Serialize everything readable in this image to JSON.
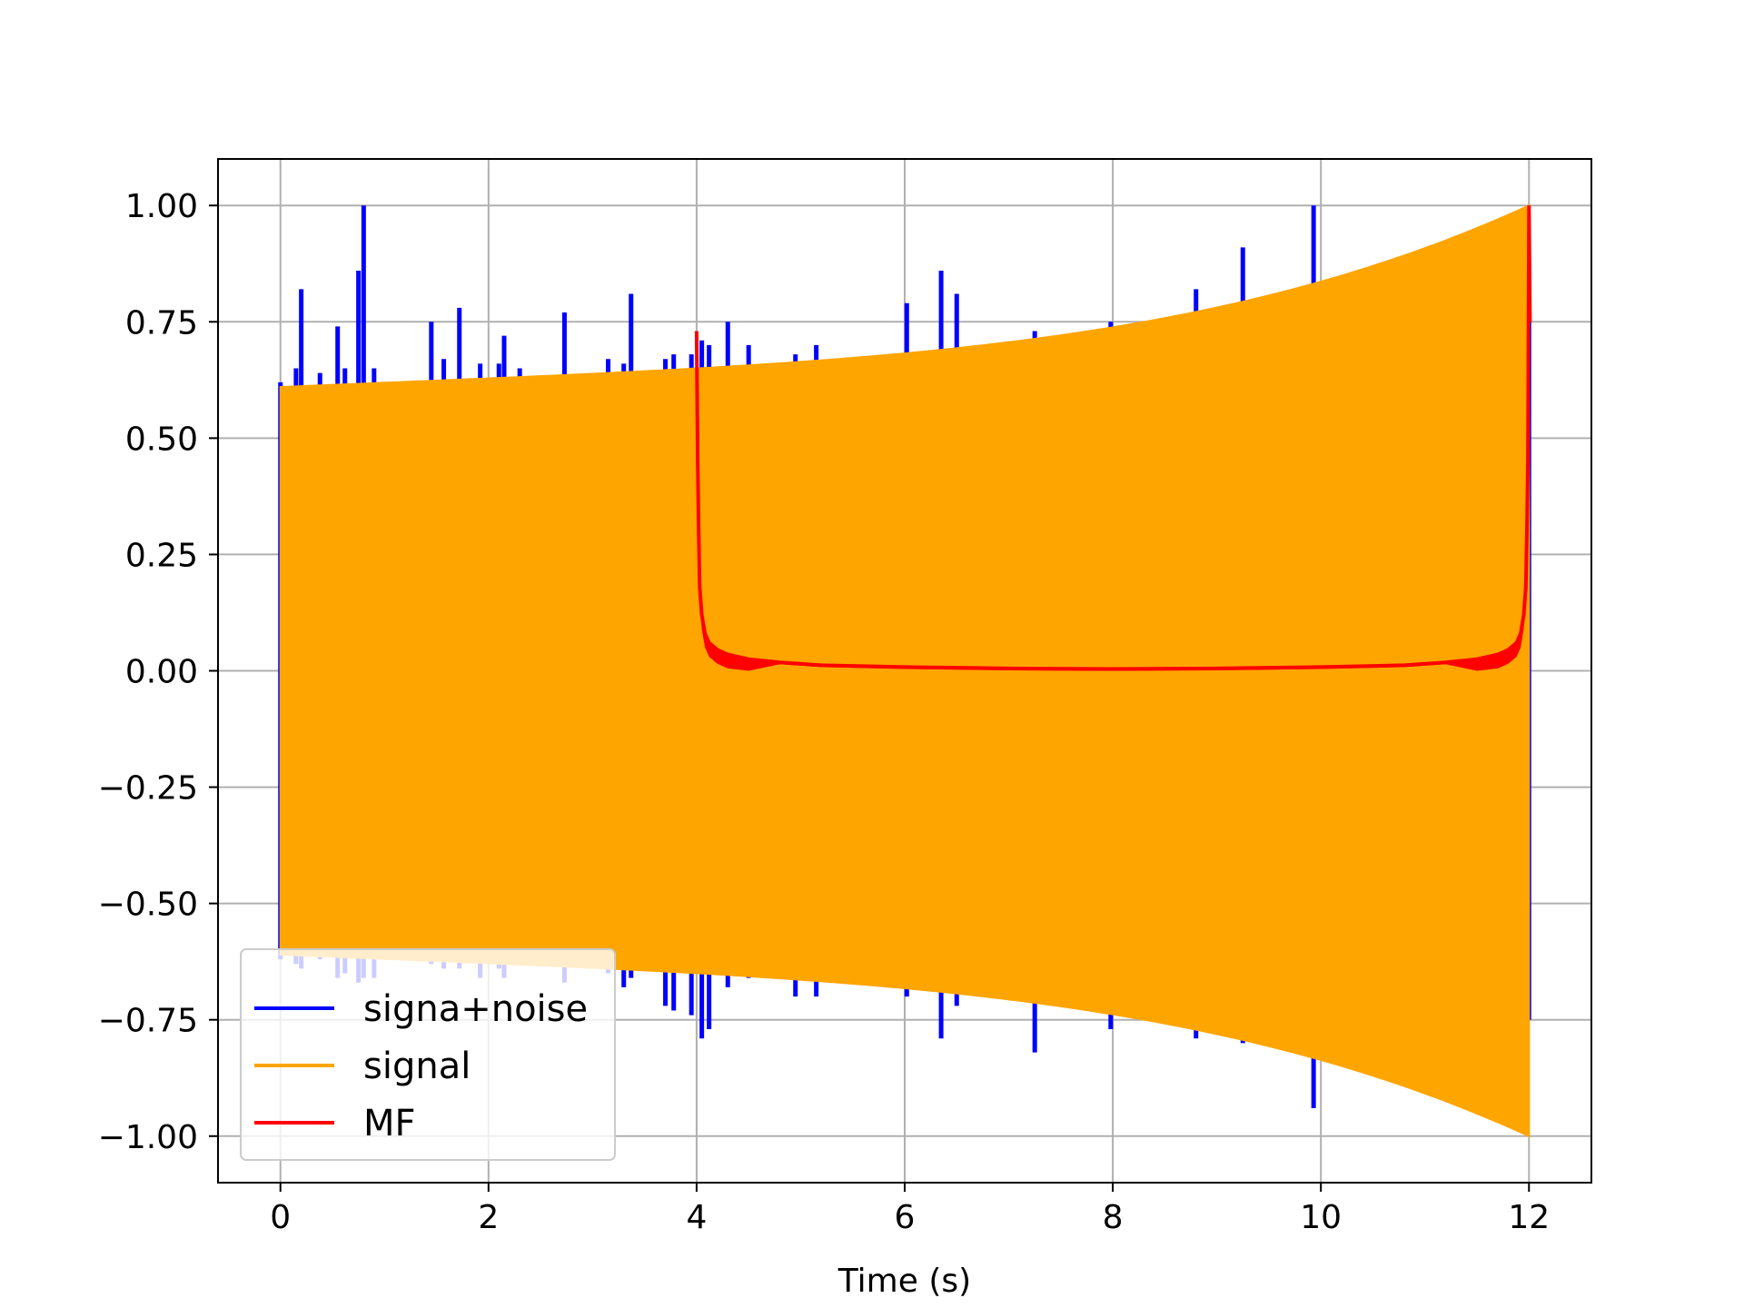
{
  "chart_data": {
    "type": "line",
    "title": "",
    "xlabel": "Time (s)",
    "ylabel": "",
    "xlim": [
      -0.6,
      12.6
    ],
    "ylim": [
      -1.1,
      1.1
    ],
    "x_ticks": [
      0,
      2,
      4,
      6,
      8,
      10,
      12
    ],
    "x_tick_labels": [
      "0",
      "2",
      "4",
      "6",
      "8",
      "10",
      "12"
    ],
    "y_ticks": [
      1.0,
      0.75,
      0.5,
      0.25,
      0.0,
      -0.25,
      -0.5,
      -0.75,
      -1.0
    ],
    "y_tick_labels": [
      "1.00",
      "0.75",
      "0.50",
      "0.25",
      "0.00",
      "−0.25",
      "−0.50",
      "−0.75",
      "−1.00"
    ],
    "grid": true,
    "legend_position": "lower-left",
    "series": [
      {
        "name": "signa+noise",
        "color": "#0000ff",
        "envelope_start": 0.62,
        "envelope_end": 1.0,
        "spikes": [
          {
            "x": 0.0,
            "top": 0.62,
            "bottom": -0.62
          },
          {
            "x": 0.15,
            "top": 0.65,
            "bottom": -0.63
          },
          {
            "x": 0.2,
            "top": 0.82,
            "bottom": -0.64
          },
          {
            "x": 0.38,
            "top": 0.64,
            "bottom": -0.62
          },
          {
            "x": 0.55,
            "top": 0.74,
            "bottom": -0.66
          },
          {
            "x": 0.62,
            "top": 0.65,
            "bottom": -0.65
          },
          {
            "x": 0.75,
            "top": 0.86,
            "bottom": -0.67
          },
          {
            "x": 0.8,
            "top": 1.0,
            "bottom": -0.66
          },
          {
            "x": 0.9,
            "top": 0.65,
            "bottom": -0.66
          },
          {
            "x": 1.45,
            "top": 0.75,
            "bottom": -0.63
          },
          {
            "x": 1.57,
            "top": 0.67,
            "bottom": -0.64
          },
          {
            "x": 1.72,
            "top": 0.78,
            "bottom": -0.64
          },
          {
            "x": 1.92,
            "top": 0.66,
            "bottom": -0.66
          },
          {
            "x": 2.1,
            "top": 0.66,
            "bottom": -0.64
          },
          {
            "x": 2.15,
            "top": 0.72,
            "bottom": -0.66
          },
          {
            "x": 2.3,
            "top": 0.65,
            "bottom": -0.63
          },
          {
            "x": 2.73,
            "top": 0.77,
            "bottom": -0.67
          },
          {
            "x": 3.15,
            "top": 0.67,
            "bottom": -0.65
          },
          {
            "x": 3.3,
            "top": 0.66,
            "bottom": -0.68
          },
          {
            "x": 3.37,
            "top": 0.81,
            "bottom": -0.66
          },
          {
            "x": 3.7,
            "top": 0.67,
            "bottom": -0.72
          },
          {
            "x": 3.78,
            "top": 0.68,
            "bottom": -0.73
          },
          {
            "x": 3.95,
            "top": 0.68,
            "bottom": -0.74
          },
          {
            "x": 4.05,
            "top": 0.71,
            "bottom": -0.79
          },
          {
            "x": 4.12,
            "top": 0.7,
            "bottom": -0.77
          },
          {
            "x": 4.3,
            "top": 0.75,
            "bottom": -0.68
          },
          {
            "x": 4.5,
            "top": 0.7,
            "bottom": -0.66
          },
          {
            "x": 4.95,
            "top": 0.68,
            "bottom": -0.7
          },
          {
            "x": 5.15,
            "top": 0.7,
            "bottom": -0.7
          },
          {
            "x": 6.02,
            "top": 0.79,
            "bottom": -0.7
          },
          {
            "x": 6.35,
            "top": 0.86,
            "bottom": -0.79
          },
          {
            "x": 6.5,
            "top": 0.81,
            "bottom": -0.72
          },
          {
            "x": 7.25,
            "top": 0.73,
            "bottom": -0.82
          },
          {
            "x": 7.98,
            "top": 0.75,
            "bottom": -0.77
          },
          {
            "x": 8.8,
            "top": 0.82,
            "bottom": -0.79
          },
          {
            "x": 9.25,
            "top": 0.91,
            "bottom": -0.8
          },
          {
            "x": 9.93,
            "top": 1.0,
            "bottom": -0.94
          },
          {
            "x": 12.0,
            "top": 0.76,
            "bottom": -0.75
          }
        ]
      },
      {
        "name": "signal",
        "color": "#ffa500",
        "x_range": [
          0,
          12
        ],
        "amplitude_start": 0.61,
        "amplitude_end": 1.0
      },
      {
        "name": "MF",
        "color": "#ff0000",
        "points": [
          [
            4.0,
            0.73
          ],
          [
            4.01,
            0.45
          ],
          [
            4.02,
            0.3
          ],
          [
            4.03,
            0.18
          ],
          [
            4.05,
            0.12
          ],
          [
            4.08,
            0.08
          ],
          [
            4.12,
            0.06
          ],
          [
            4.2,
            0.045
          ],
          [
            4.3,
            0.035
          ],
          [
            4.5,
            0.025
          ],
          [
            4.8,
            0.018
          ],
          [
            5.2,
            0.012
          ],
          [
            6.0,
            0.008
          ],
          [
            7.0,
            0.005
          ],
          [
            8.0,
            0.004
          ],
          [
            9.0,
            0.005
          ],
          [
            10.0,
            0.008
          ],
          [
            10.8,
            0.012
          ],
          [
            11.2,
            0.018
          ],
          [
            11.5,
            0.025
          ],
          [
            11.7,
            0.035
          ],
          [
            11.8,
            0.045
          ],
          [
            11.88,
            0.06
          ],
          [
            11.92,
            0.08
          ],
          [
            11.95,
            0.12
          ],
          [
            11.97,
            0.18
          ],
          [
            11.98,
            0.3
          ],
          [
            11.99,
            0.45
          ],
          [
            12.0,
            1.0
          ],
          [
            12.01,
            0.75
          ]
        ],
        "ripple_band": 0.03
      }
    ]
  }
}
